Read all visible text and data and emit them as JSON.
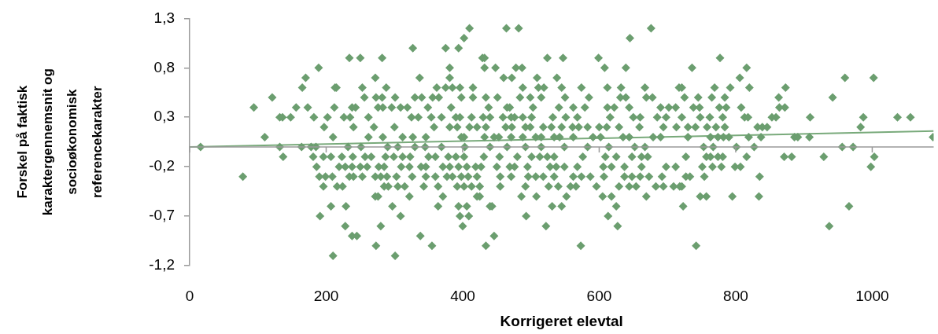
{
  "chart_data": {
    "type": "scatter",
    "xlabel": "Korrigeret elevtal",
    "ylabel": "Forskel på faktisk\nkaraktergennemsnit og\nsocioøkonomisk\nreferencekarakter",
    "xlim": [
      0,
      1090
    ],
    "xticks": [
      0,
      200,
      400,
      600,
      800,
      1000
    ],
    "ylim": [
      -1.2,
      1.3
    ],
    "yticks": [
      {
        "value": -1.2,
        "label": "-1,2"
      },
      {
        "value": -0.7,
        "label": "-0,7"
      },
      {
        "value": -0.2,
        "label": "-0,2"
      },
      {
        "value": 0.3,
        "label": "0,3"
      },
      {
        "value": 0.8,
        "label": "0,8"
      },
      {
        "value": 1.3,
        "label": "1,3"
      }
    ],
    "marker": "diamond",
    "legend": false,
    "series": [
      {
        "color": "#6b9e6f",
        "x": [
          410,
          464,
          482,
          676,
          402,
          645,
          327,
          375,
          394,
          234,
          250,
          282,
          429,
          432,
          524,
          547,
          599,
          777,
          189,
          381,
          432,
          448,
          478,
          487,
          608,
          639,
          736,
          816,
          170,
          272,
          337,
          381,
          460,
          472,
          509,
          538,
          806,
          960,
          1002,
          165,
          213,
          215,
          253,
          288,
          362,
          375,
          385,
          396,
          415,
          488,
          511,
          519,
          545,
          574,
          612,
          632,
          667,
          717,
          721,
          769,
          792,
          820,
          873,
          121,
          256,
          273,
          282,
          301,
          330,
          340,
          356,
          365,
          398,
          415,
          434,
          451,
          484,
          499,
          515,
          550,
          585,
          631,
          639,
          669,
          678,
          725,
          745,
          765,
          784,
          863,
          942,
          94,
          156,
          173,
          212,
          238,
          243,
          276,
          283,
          296,
          309,
          319,
          349,
          383,
          438,
          465,
          469,
          503,
          541,
          562,
          579,
          612,
          622,
          644,
          690,
          702,
          712,
          738,
          747,
          776,
          786,
          808,
          864,
          872,
          132,
          136,
          148,
          182,
          202,
          226,
          235,
          262,
          325,
          335,
          354,
          369,
          390,
          396,
          413,
          430,
          440,
          459,
          471,
          476,
          488,
          501,
          532,
          551,
          568,
          616,
          650,
          660,
          685,
          698,
          721,
          748,
          762,
          781,
          813,
          818,
          853,
          859,
          909,
          987,
          1037,
          1056,
          197,
          240,
          270,
          300,
          358,
          381,
          392,
          410,
          421,
          434,
          463,
          472,
          492,
          499,
          518,
          530,
          545,
          561,
          570,
          583,
          600,
          611,
          629,
          659,
          694,
          713,
          730,
          741,
          758,
          771,
          784,
          832,
          839,
          846,
          983,
          110,
          210,
          262,
          283,
          312,
          327,
          346,
          398,
          402,
          432,
          446,
          453,
          471,
          488,
          507,
          515,
          534,
          542,
          562,
          591,
          602,
          635,
          644,
          679,
          690,
          730,
          763,
          774,
          782,
          790,
          819,
          837,
          886,
          891,
          908,
          1089,
          16,
          132,
          164,
          178,
          185,
          232,
          251,
          290,
          305,
          330,
          345,
          369,
          403,
          440,
          465,
          492,
          515,
          549,
          583,
          614,
          652,
          667,
          753,
          767,
          801,
          827,
          956,
          972,
          137,
          181,
          196,
          207,
          223,
          239,
          257,
          266,
          287,
          299,
          312,
          323,
          350,
          360,
          379,
          390,
          402,
          431,
          454,
          480,
          501,
          513,
          524,
          534,
          576,
          609,
          625,
          648,
          662,
          671,
          727,
          757,
          763,
          774,
          781,
          816,
          871,
          882,
          929,
          1003,
          186,
          219,
          228,
          238,
          250,
          260,
          277,
          285,
          310,
          322,
          339,
          346,
          371,
          381,
          394,
          406,
          419,
          427,
          450,
          469,
          476,
          495,
          528,
          537,
          549,
          568,
          606,
          618,
          637,
          662,
          698,
          712,
          751,
          766,
          779,
          799,
          807,
          998,
          78,
          190,
          199,
          209,
          234,
          240,
          253,
          272,
          280,
          289,
          303,
          326,
          346,
          360,
          377,
          385,
          398,
          408,
          421,
          455,
          471,
          496,
          507,
          518,
          534,
          562,
          574,
          587,
          607,
          637,
          648,
          660,
          673,
          692,
          727,
          733,
          754,
          835,
          196,
          216,
          224,
          285,
          291,
          305,
          315,
          343,
          364,
          392,
          402,
          413,
          425,
          455,
          492,
          526,
          540,
          558,
          566,
          596,
          629,
          644,
          654,
          683,
          694,
          709,
          718,
          721,
          272,
          276,
          322,
          371,
          421,
          425,
          486,
          508,
          552,
          605,
          618,
          669,
          748,
          757,
          795,
          834,
          207,
          229,
          297,
          364,
          394,
          406,
          440,
          443,
          531,
          545,
          625,
          723,
          966,
          191,
          309,
          396,
          409,
          493,
          613,
          228,
          280,
          400,
          522,
          627,
          937,
          238,
          245,
          338,
          446,
          273,
          355,
          434,
          573,
          742,
          210,
          301
        ],
        "values": [
          1.2,
          1.2,
          1.2,
          1.2,
          1.1,
          1.1,
          1.0,
          1.0,
          1.0,
          0.9,
          0.9,
          0.9,
          0.9,
          0.9,
          0.9,
          0.9,
          0.9,
          0.9,
          0.8,
          0.8,
          0.8,
          0.8,
          0.8,
          0.8,
          0.8,
          0.8,
          0.8,
          0.8,
          0.7,
          0.7,
          0.7,
          0.7,
          0.7,
          0.7,
          0.7,
          0.7,
          0.7,
          0.7,
          0.7,
          0.6,
          0.6,
          0.6,
          0.6,
          0.6,
          0.6,
          0.6,
          0.6,
          0.6,
          0.6,
          0.6,
          0.6,
          0.6,
          0.6,
          0.6,
          0.6,
          0.6,
          0.6,
          0.6,
          0.6,
          0.6,
          0.6,
          0.6,
          0.6,
          0.5,
          0.5,
          0.5,
          0.5,
          0.5,
          0.5,
          0.5,
          0.5,
          0.5,
          0.5,
          0.5,
          0.5,
          0.5,
          0.5,
          0.5,
          0.5,
          0.5,
          0.5,
          0.5,
          0.5,
          0.5,
          0.5,
          0.5,
          0.5,
          0.5,
          0.5,
          0.5,
          0.5,
          0.4,
          0.4,
          0.4,
          0.4,
          0.4,
          0.4,
          0.4,
          0.4,
          0.4,
          0.4,
          0.4,
          0.4,
          0.4,
          0.4,
          0.4,
          0.4,
          0.4,
          0.4,
          0.4,
          0.4,
          0.4,
          0.4,
          0.4,
          0.4,
          0.4,
          0.4,
          0.4,
          0.4,
          0.4,
          0.4,
          0.4,
          0.4,
          0.4,
          0.3,
          0.3,
          0.3,
          0.3,
          0.3,
          0.3,
          0.3,
          0.3,
          0.3,
          0.3,
          0.3,
          0.3,
          0.3,
          0.3,
          0.3,
          0.3,
          0.3,
          0.3,
          0.3,
          0.3,
          0.3,
          0.3,
          0.3,
          0.3,
          0.3,
          0.3,
          0.3,
          0.3,
          0.3,
          0.3,
          0.3,
          0.3,
          0.3,
          0.3,
          0.3,
          0.3,
          0.3,
          0.3,
          0.3,
          0.3,
          0.3,
          0.3,
          0.2,
          0.2,
          0.2,
          0.2,
          0.2,
          0.2,
          0.2,
          0.2,
          0.2,
          0.2,
          0.2,
          0.2,
          0.2,
          0.2,
          0.2,
          0.2,
          0.2,
          0.2,
          0.2,
          0.2,
          0.2,
          0.2,
          0.2,
          0.2,
          0.2,
          0.2,
          0.2,
          0.2,
          0.2,
          0.2,
          0.2,
          0.2,
          0.2,
          0.2,
          0.2,
          0.1,
          0.1,
          0.1,
          0.1,
          0.1,
          0.1,
          0.1,
          0.1,
          0.1,
          0.1,
          0.1,
          0.1,
          0.1,
          0.1,
          0.1,
          0.1,
          0.1,
          0.1,
          0.1,
          0.1,
          0.1,
          0.1,
          0.1,
          0.1,
          0.1,
          0.1,
          0.1,
          0.1,
          0.1,
          0.1,
          0.1,
          0.1,
          0.1,
          0.1,
          0.1,
          0.1,
          0.0,
          0.0,
          0.0,
          0.0,
          0.0,
          0.0,
          0.0,
          0.0,
          0.0,
          0.0,
          0.0,
          0.0,
          0.0,
          0.0,
          0.0,
          0.0,
          0.0,
          0.0,
          0.0,
          0.0,
          0.0,
          0.0,
          0.0,
          0.0,
          0.0,
          0.0,
          0.0,
          0.0,
          -0.1,
          -0.1,
          -0.1,
          -0.1,
          -0.1,
          -0.1,
          -0.1,
          -0.1,
          -0.1,
          -0.1,
          -0.1,
          -0.1,
          -0.1,
          -0.1,
          -0.1,
          -0.1,
          -0.1,
          -0.1,
          -0.1,
          -0.1,
          -0.1,
          -0.1,
          -0.1,
          -0.1,
          -0.1,
          -0.1,
          -0.1,
          -0.1,
          -0.1,
          -0.1,
          -0.1,
          -0.1,
          -0.1,
          -0.1,
          -0.1,
          -0.1,
          -0.1,
          -0.1,
          -0.1,
          -0.1,
          -0.2,
          -0.2,
          -0.2,
          -0.2,
          -0.2,
          -0.2,
          -0.2,
          -0.2,
          -0.2,
          -0.2,
          -0.2,
          -0.2,
          -0.2,
          -0.2,
          -0.2,
          -0.2,
          -0.2,
          -0.2,
          -0.2,
          -0.2,
          -0.2,
          -0.2,
          -0.2,
          -0.2,
          -0.2,
          -0.2,
          -0.2,
          -0.2,
          -0.2,
          -0.2,
          -0.2,
          -0.2,
          -0.2,
          -0.2,
          -0.2,
          -0.2,
          -0.2,
          -0.2,
          -0.3,
          -0.3,
          -0.3,
          -0.3,
          -0.3,
          -0.3,
          -0.3,
          -0.3,
          -0.3,
          -0.3,
          -0.3,
          -0.3,
          -0.3,
          -0.3,
          -0.3,
          -0.3,
          -0.3,
          -0.3,
          -0.3,
          -0.3,
          -0.3,
          -0.3,
          -0.3,
          -0.3,
          -0.3,
          -0.3,
          -0.3,
          -0.3,
          -0.3,
          -0.3,
          -0.3,
          -0.3,
          -0.3,
          -0.3,
          -0.3,
          -0.3,
          -0.3,
          -0.3,
          -0.4,
          -0.4,
          -0.4,
          -0.4,
          -0.4,
          -0.4,
          -0.4,
          -0.4,
          -0.4,
          -0.4,
          -0.4,
          -0.4,
          -0.4,
          -0.4,
          -0.4,
          -0.4,
          -0.4,
          -0.4,
          -0.4,
          -0.4,
          -0.4,
          -0.4,
          -0.4,
          -0.4,
          -0.4,
          -0.4,
          -0.4,
          -0.4,
          -0.5,
          -0.5,
          -0.5,
          -0.5,
          -0.5,
          -0.5,
          -0.5,
          -0.5,
          -0.5,
          -0.5,
          -0.5,
          -0.5,
          -0.5,
          -0.5,
          -0.5,
          -0.5,
          -0.6,
          -0.6,
          -0.6,
          -0.6,
          -0.6,
          -0.6,
          -0.6,
          -0.6,
          -0.6,
          -0.6,
          -0.6,
          -0.6,
          -0.6,
          -0.7,
          -0.7,
          -0.7,
          -0.7,
          -0.7,
          -0.7,
          -0.8,
          -0.8,
          -0.8,
          -0.8,
          -0.8,
          -0.8,
          -0.9,
          -0.9,
          -0.9,
          -0.9,
          -1.0,
          -1.0,
          -1.0,
          -1.0,
          -1.0,
          -1.1,
          -1.1
        ]
      },
      {
        "type": "line",
        "color": "#79aa7b",
        "marker": "none",
        "x": [
          0,
          1090
        ],
        "values": [
          0.0,
          0.16
        ]
      }
    ]
  }
}
